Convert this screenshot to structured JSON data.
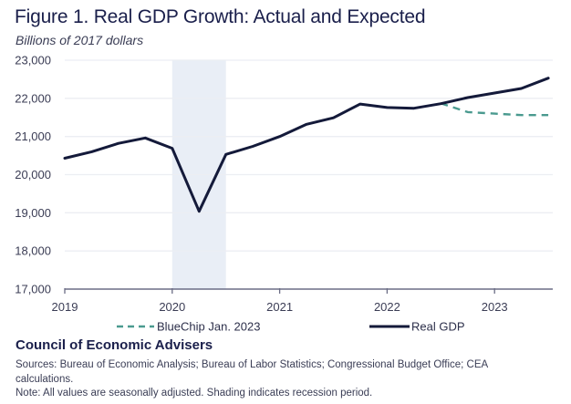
{
  "header": {
    "title": "Figure 1. Real GDP Growth: Actual and Expected",
    "subtitle": "Billions of 2017 dollars"
  },
  "footer": {
    "organization": "Council of Economic Advisers",
    "sources": "Sources: Bureau of Economic Analysis; Bureau of Labor Statistics; Congressional Budget Office; CEA calculations.",
    "note": "Note: All values are seasonally adjusted. Shading indicates recession period."
  },
  "chart_data": {
    "type": "line",
    "title": "Figure 1. Real GDP Growth: Actual and Expected",
    "subtitle": "Billions of 2017 dollars",
    "xlabel": "",
    "ylabel": "Billions of 2017 dollars",
    "xlim": [
      2019,
      2023.55
    ],
    "ylim": [
      17000,
      23000
    ],
    "x_ticks": [
      2019,
      2020,
      2021,
      2022,
      2023
    ],
    "x_tick_labels": [
      "2019",
      "2020",
      "2021",
      "2022",
      "2023"
    ],
    "y_ticks": [
      17000,
      18000,
      19000,
      20000,
      21000,
      22000,
      23000
    ],
    "y_tick_labels": [
      "17,000",
      "18,000",
      "19,000",
      "20,000",
      "21,000",
      "22,000",
      "23,000"
    ],
    "grid": "horizontal",
    "legend_position": "bottom",
    "shaded_regions": [
      {
        "label": "Recession period",
        "x_start": 2020.0,
        "x_end": 2020.5,
        "color": "#e9eef6"
      }
    ],
    "series": [
      {
        "name": "Real GDP",
        "style": "solid",
        "color": "#141a3a",
        "x": [
          2019.0,
          2019.25,
          2019.5,
          2019.75,
          2020.0,
          2020.25,
          2020.5,
          2020.75,
          2021.0,
          2021.25,
          2021.5,
          2021.75,
          2022.0,
          2022.25,
          2022.5,
          2022.75,
          2023.0,
          2023.25,
          2023.5
        ],
        "values": [
          20430,
          20600,
          20820,
          20960,
          20690,
          19040,
          20530,
          20740,
          21000,
          21320,
          21490,
          21850,
          21760,
          21740,
          21860,
          22020,
          22140,
          22260,
          22530
        ]
      },
      {
        "name": "BlueChip Jan. 2023",
        "style": "dashed",
        "color": "#4a9a8f",
        "x": [
          2022.5,
          2022.75,
          2023.0,
          2023.25,
          2023.5
        ],
        "values": [
          21870,
          21640,
          21600,
          21560,
          21560
        ]
      }
    ]
  }
}
